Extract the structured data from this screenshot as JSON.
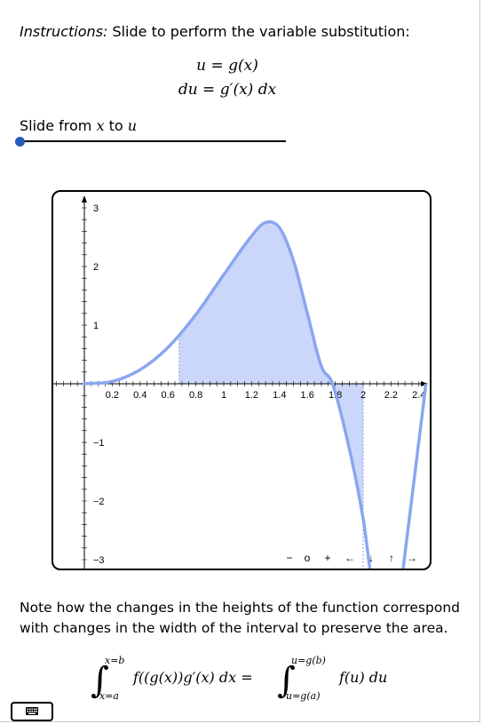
{
  "instructions": {
    "label": "Instructions:",
    "text": " Slide to perform the variable substitution:"
  },
  "equations": {
    "line1": "u = g(x)",
    "line2": "du = g′(x) dx"
  },
  "slider": {
    "label_prefix": "Slide from ",
    "var_from": "x",
    "label_mid": " to ",
    "var_to": "u",
    "value": 0
  },
  "chart_data": {
    "type": "area",
    "title": "",
    "xlim": [
      -0.2,
      2.5
    ],
    "ylim": [
      -3.2,
      3.2
    ],
    "x_ticks": [
      "0.2",
      "0.4",
      "0.6",
      "0.8",
      "1",
      "1.2",
      "1.4",
      "1.6",
      "1.8",
      "2",
      "2.2",
      "2.4"
    ],
    "y_ticks": [
      "3",
      "2",
      "1",
      "−1",
      "−2",
      "−3"
    ],
    "curve": [
      [
        0,
        0
      ],
      [
        0.2,
        0.04
      ],
      [
        0.4,
        0.24
      ],
      [
        0.6,
        0.62
      ],
      [
        0.8,
        1.18
      ],
      [
        1,
        1.86
      ],
      [
        1.2,
        2.52
      ],
      [
        1.3,
        2.75
      ],
      [
        1.4,
        2.66
      ],
      [
        1.5,
        2.1
      ],
      [
        1.6,
        1.2
      ],
      [
        1.7,
        0.3
      ],
      [
        1.78,
        0
      ],
      [
        1.9,
        -1.1
      ],
      [
        2.0,
        -2.3
      ],
      [
        2.05,
        -3.2
      ]
    ],
    "shaded_interval_a": 0.68,
    "shaded_interval_b": 2.0,
    "controls": [
      "−",
      "o",
      "+",
      "←",
      "↓",
      "↑",
      "→"
    ]
  },
  "note": "Note how the changes in the heights of the function correspond with changes in the width of the interval to preserve the area.",
  "integral": {
    "lower_x": "x=a",
    "upper_x": "x=b",
    "integrand_x": "f((g(x))g′(x) dx =",
    "lower_u": "u=g(a)",
    "upper_u": "u=g(b)",
    "integrand_u": "f(u) du"
  },
  "keyboard": {
    "icon": "keyboard-icon"
  }
}
